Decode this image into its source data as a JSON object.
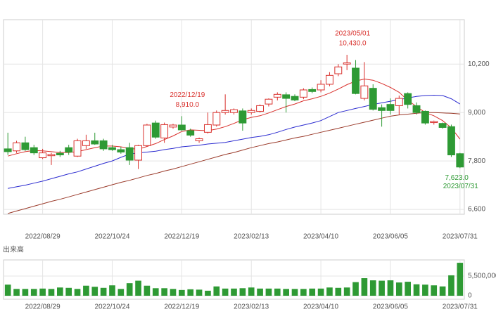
{
  "chart_data": [
    {
      "type": "candlestick",
      "categories": [
        null,
        null,
        null,
        null,
        "2022/08/29",
        null,
        null,
        null,
        null,
        null,
        null,
        null,
        "2022/10/24",
        null,
        null,
        null,
        null,
        null,
        null,
        null,
        "2022/12/19",
        null,
        null,
        null,
        null,
        null,
        null,
        null,
        "2023/02/13",
        null,
        null,
        null,
        null,
        null,
        null,
        null,
        "2023/04/10",
        null,
        null,
        null,
        null,
        null,
        null,
        null,
        "2023/06/05",
        null,
        null,
        null,
        null,
        null,
        null,
        null,
        "2023/07/31"
      ],
      "open": [
        8100,
        8050,
        8250,
        8130,
        7880,
        7930,
        7990,
        8130,
        7920,
        8180,
        8300,
        8300,
        8130,
        8080,
        8130,
        7820,
        8180,
        8740,
        8370,
        8640,
        8690,
        8550,
        8300,
        8510,
        8690,
        9000,
        9000,
        9040,
        9000,
        9030,
        9210,
        9380,
        9440,
        9400,
        9380,
        9570,
        9560,
        9700,
        9960,
        10200,
        10100,
        9350,
        9600,
        9120,
        9200,
        9170,
        9470,
        9170,
        9030,
        8750,
        8730,
        8650,
        7980
      ],
      "high": [
        8500,
        8300,
        8400,
        8200,
        8100,
        8000,
        8050,
        8200,
        8350,
        8450,
        8500,
        8350,
        8200,
        8150,
        8250,
        8200,
        8720,
        8800,
        8750,
        8720,
        8910,
        8600,
        8380,
        9000,
        9050,
        9450,
        9100,
        9100,
        9100,
        9200,
        9350,
        9500,
        9500,
        9450,
        9600,
        9620,
        9800,
        10000,
        10200,
        10430,
        10300,
        10250,
        9700,
        9200,
        9350,
        9420,
        9500,
        9250,
        9050,
        8800,
        8750,
        8700,
        8000
      ],
      "low": [
        7950,
        8000,
        8050,
        7950,
        7850,
        7700,
        7900,
        7950,
        7900,
        8100,
        8200,
        8050,
        8050,
        7980,
        7700,
        7600,
        8150,
        8350,
        8250,
        8600,
        8550,
        8400,
        8250,
        8480,
        8650,
        8950,
        8950,
        8550,
        8950,
        9000,
        9150,
        9300,
        9000,
        9280,
        9330,
        9480,
        9500,
        9650,
        9900,
        10050,
        9450,
        9300,
        9050,
        8650,
        8950,
        8950,
        9100,
        8950,
        8700,
        8700,
        8600,
        7900,
        7623
      ],
      "close": [
        8030,
        8250,
        8080,
        8000,
        8000,
        7960,
        7950,
        8020,
        8300,
        8300,
        8220,
        8100,
        8080,
        8020,
        7820,
        8180,
        8690,
        8390,
        8700,
        8690,
        8570,
        8440,
        8350,
        8700,
        9000,
        9050,
        9070,
        8740,
        9050,
        9170,
        9330,
        9450,
        9350,
        9310,
        9560,
        9520,
        9700,
        9920,
        10130,
        10230,
        9470,
        9660,
        9080,
        9050,
        9050,
        9350,
        9200,
        9000,
        8740,
        8780,
        8630,
        7950,
        7650
      ],
      "up_color": "#d9302c",
      "down_color": "#2e9a34",
      "lines": [
        {
          "color": "#d9302c",
          "values": [
            7920,
            7980,
            8030,
            8060,
            8050,
            8030,
            8010,
            8010,
            8030,
            8080,
            8130,
            8170,
            8170,
            8150,
            8110,
            8090,
            8160,
            8230,
            8330,
            8420,
            8530,
            8570,
            8560,
            8550,
            8590,
            8650,
            8730,
            8820,
            8880,
            8920,
            8990,
            9070,
            9150,
            9210,
            9290,
            9340,
            9400,
            9480,
            9580,
            9690,
            9780,
            9830,
            9800,
            9720,
            9620,
            9500,
            9300,
            9150,
            9000,
            8920,
            8800,
            8620,
            8340
          ]
        },
        {
          "color": "#2b2bd0",
          "values": [
            7120,
            7160,
            7200,
            7250,
            7300,
            7360,
            7420,
            7480,
            7530,
            7600,
            7670,
            7740,
            7800,
            7890,
            7970,
            8000,
            8020,
            8040,
            8080,
            8110,
            8150,
            8170,
            8190,
            8220,
            8240,
            8260,
            8300,
            8340,
            8380,
            8410,
            8450,
            8510,
            8580,
            8640,
            8690,
            8740,
            8800,
            8900,
            9000,
            9050,
            9100,
            9150,
            9200,
            9240,
            9280,
            9320,
            9360,
            9400,
            9420,
            9430,
            9420,
            9340,
            9210
          ]
        },
        {
          "color": "#9a3a2a",
          "values": [
            6500,
            6560,
            6620,
            6680,
            6740,
            6800,
            6850,
            6910,
            6970,
            7030,
            7090,
            7150,
            7210,
            7270,
            7320,
            7380,
            7440,
            7490,
            7550,
            7600,
            7660,
            7720,
            7780,
            7840,
            7900,
            7960,
            8010,
            8070,
            8130,
            8180,
            8230,
            8270,
            8320,
            8370,
            8410,
            8460,
            8510,
            8560,
            8610,
            8660,
            8710,
            8760,
            8810,
            8860,
            8910,
            8940,
            8960,
            8980,
            9000,
            9000,
            8990,
            8980,
            8965
          ]
        }
      ],
      "ylim": [
        6480,
        11300
      ],
      "yticks": [
        {
          "value": 6600,
          "label": "6,600"
        },
        {
          "value": 7800,
          "label": "7,800"
        },
        {
          "value": 9000,
          "label": "9,000"
        },
        {
          "value": 10200,
          "label": "10,200"
        }
      ],
      "grid": true,
      "annotations": [
        {
          "date": "2022/12/19",
          "value": 8910,
          "label": "8,910.0"
        },
        {
          "date": "2023/05/01",
          "value": 10430,
          "label": "10,430.0"
        },
        {
          "date": "2023/07/31",
          "value": 7623,
          "label": "7,623.0"
        }
      ]
    },
    {
      "type": "bar",
      "label": "出来高",
      "categories": [
        null,
        null,
        null,
        null,
        "2022/08/29",
        null,
        null,
        null,
        null,
        null,
        null,
        null,
        "2022/10/24",
        null,
        null,
        null,
        null,
        null,
        null,
        null,
        "2022/12/19",
        null,
        null,
        null,
        null,
        null,
        null,
        null,
        "2023/02/13",
        null,
        null,
        null,
        null,
        null,
        null,
        null,
        "2023/04/10",
        null,
        null,
        null,
        null,
        null,
        null,
        null,
        "2023/06/05",
        null,
        null,
        null,
        null,
        null,
        null,
        null,
        "2023/07/31"
      ],
      "values": [
        3100000,
        1900000,
        1900000,
        1900000,
        2000000,
        1900000,
        2300000,
        2200000,
        1900000,
        2800000,
        2500000,
        2200000,
        2900000,
        1900000,
        3500000,
        4200000,
        2800000,
        2100000,
        2100000,
        1900000,
        1600000,
        1800000,
        1700000,
        1400000,
        2600000,
        2000000,
        2000000,
        2100000,
        2300000,
        2000000,
        2000000,
        2000000,
        1900000,
        1900000,
        1900000,
        2000000,
        2000000,
        2300000,
        2200000,
        2300000,
        3800000,
        4900000,
        4300000,
        4200000,
        4300000,
        3700000,
        3900000,
        3200000,
        3100000,
        2900000,
        2600000,
        5700000,
        9200000
      ],
      "color": "#2e9a34",
      "ylim": [
        0,
        10000000
      ],
      "yticks": [
        0,
        {
          "value": 5500000,
          "label": "5,500,000"
        }
      ],
      "grid": true
    }
  ]
}
